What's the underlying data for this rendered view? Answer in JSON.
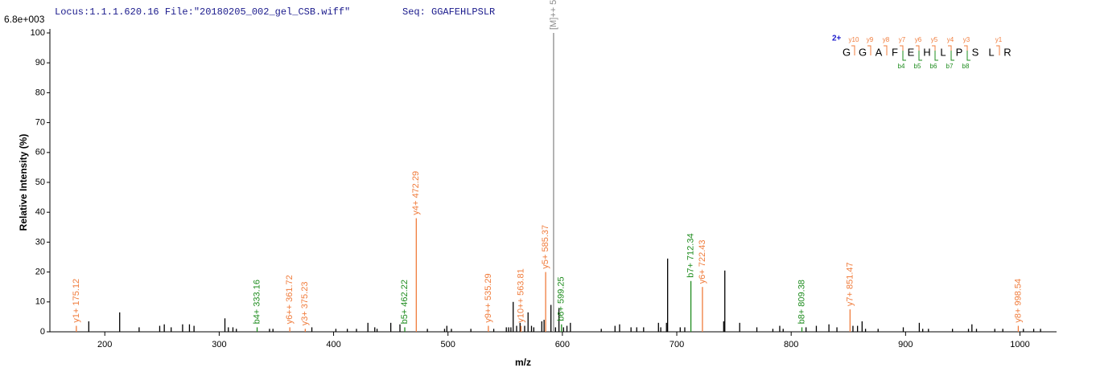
{
  "chart_data": {
    "type": "stem",
    "header": "Locus:1.1.1.620.16 File:\"20180205_002_gel_CSB.wiff\"",
    "seq": "Seq: GGAFEHLPSLR",
    "scale_label": "6.8e+003",
    "ylabel": "Relative   Intensity (%)",
    "xlabel": "m/z",
    "xlim": [
      152,
      1032
    ],
    "ylim": [
      0,
      100
    ],
    "xticks": [
      200,
      300,
      400,
      500,
      600,
      700,
      800,
      900,
      1000
    ],
    "yticks": [
      0,
      10,
      20,
      30,
      40,
      50,
      60,
      70,
      80,
      90,
      100
    ],
    "series": [
      {
        "color": "#000000",
        "x": [
          186,
          213,
          230,
          248,
          252,
          258,
          268,
          274,
          278,
          305,
          308,
          312,
          315,
          344,
          347,
          381,
          402,
          412,
          420,
          430,
          436,
          438,
          450,
          458,
          482,
          497,
          499,
          503,
          520,
          540,
          551,
          553,
          555,
          557,
          560,
          563,
          567,
          570,
          573,
          575,
          582,
          584,
          590,
          594,
          597,
          601,
          604,
          607,
          634,
          646,
          650,
          660,
          665,
          671,
          684,
          686,
          691,
          692,
          703,
          707,
          741,
          742,
          755,
          770,
          784,
          790,
          793,
          813,
          822,
          833,
          840,
          854,
          858,
          862,
          865,
          876,
          898,
          912,
          915,
          920,
          941,
          955,
          958,
          962,
          978,
          985,
          1003,
          1012,
          1018
        ],
        "values": [
          3.5,
          6.5,
          1.5,
          2,
          2.5,
          1.5,
          2.5,
          2.5,
          2,
          4.5,
          1.5,
          1.5,
          1,
          1,
          1,
          1.5,
          1,
          1,
          1,
          3,
          1.5,
          1,
          3,
          2.5,
          1,
          1,
          2,
          1,
          1,
          1,
          1.5,
          1.5,
          1.5,
          10,
          2,
          3,
          2,
          6.5,
          2,
          1.5,
          3.5,
          4,
          9,
          1.5,
          8,
          1.5,
          2,
          3,
          1,
          2,
          2.5,
          1.5,
          1.5,
          1.5,
          3,
          1.5,
          3,
          24.5,
          1.5,
          1.5,
          3.5,
          20.5,
          3,
          1.5,
          1,
          2,
          1,
          1.5,
          2,
          2.5,
          1.5,
          2,
          2,
          3.5,
          1,
          1,
          1.5,
          3,
          1,
          1,
          1,
          1,
          2.5,
          1,
          1,
          1,
          1,
          1,
          1
        ]
      },
      {
        "color": "#f07c3c",
        "x": [
          175.12,
          361.72,
          375.23,
          472.29,
          535.29,
          563.81,
          585.37,
          722.43,
          851.47,
          998.54
        ],
        "values": [
          2,
          1.5,
          1,
          38,
          2,
          2,
          20,
          15,
          7.5,
          2
        ],
        "labels": [
          "y1+ 175.12",
          "y6++ 361.72",
          "y3+ 375.23",
          "y4+ 472.29",
          "y9++ 535.29",
          "y10++ 563.81",
          "y5+ 585.37",
          "y6+ 722.43",
          "y7+ 851.47",
          "y8+ 998.54"
        ]
      },
      {
        "color": "#1e8c1e",
        "x": [
          333.16,
          462.22,
          599.25,
          712.34,
          809.38
        ],
        "values": [
          1.5,
          1.5,
          2.5,
          17,
          1.5
        ],
        "labels": [
          "b4+ 333.16",
          "b5+ 462.22",
          "b6+ 599.25",
          "b7+ 712.34",
          "b8+ 809.38"
        ]
      },
      {
        "color": "#8c8c8c",
        "x": [
          592.31
        ],
        "values": [
          100
        ],
        "labels": [
          "[M]++ 592.31"
        ]
      }
    ],
    "sequence_map": {
      "charge": "2+",
      "residues": [
        "G",
        "G",
        "A",
        "F",
        "E",
        "H",
        "L",
        "P",
        "S",
        "L",
        "R"
      ],
      "y_labels": [
        "y10",
        "y9",
        "y8",
        "y7",
        "y6",
        "y5",
        "y4",
        "y3",
        null,
        "y1"
      ],
      "b_labels": [
        null,
        null,
        null,
        "b4",
        "b5",
        "b6",
        "b7",
        "b8",
        null,
        null
      ]
    }
  }
}
